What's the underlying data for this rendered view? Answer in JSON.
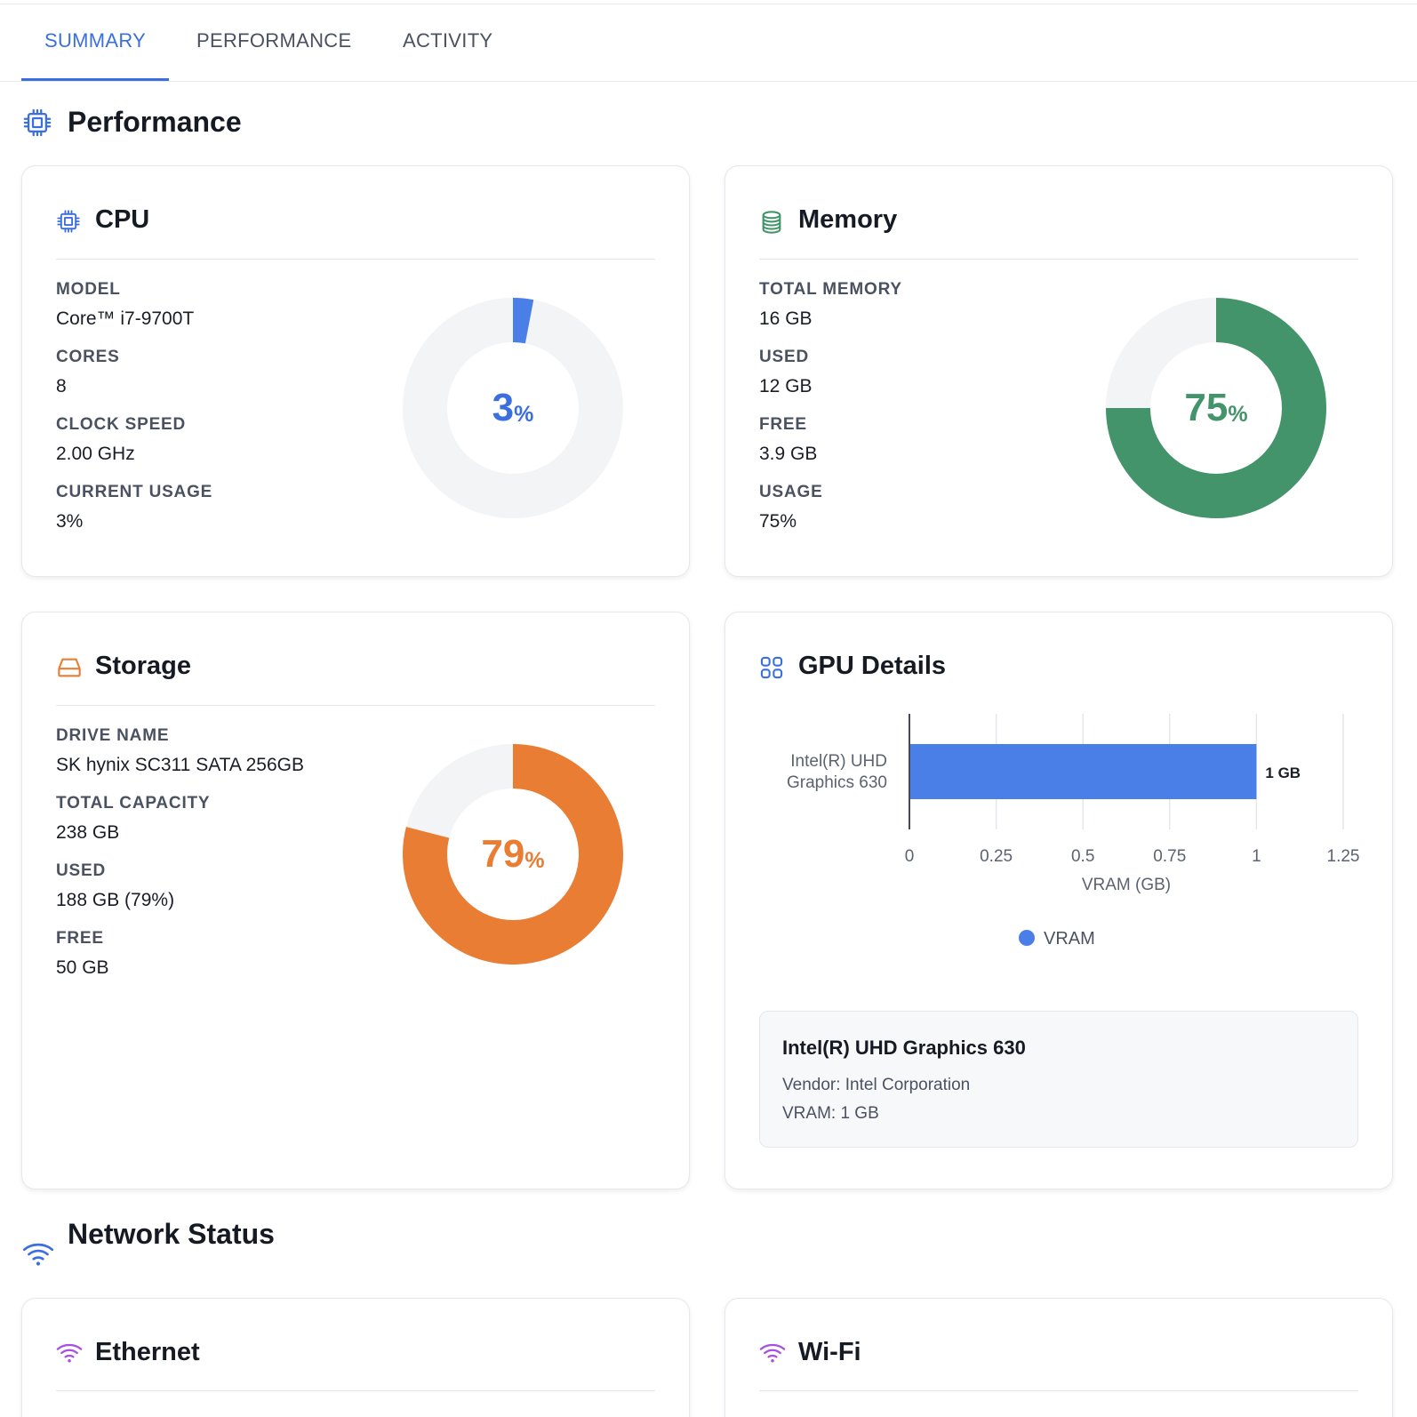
{
  "tabs": [
    {
      "label": "SUMMARY",
      "active": true
    },
    {
      "label": "PERFORMANCE",
      "active": false
    },
    {
      "label": "ACTIVITY",
      "active": false
    }
  ],
  "sections": {
    "performance": "Performance",
    "network": "Network Status"
  },
  "colors": {
    "accent": "#3b6fe0",
    "cpu": "#4a7fe8",
    "memory": "#43946a",
    "storage": "#e97d34",
    "network": "#a84fe0",
    "track": "#f3f4f6"
  },
  "cpu": {
    "title": "CPU",
    "icon": "cpu-chip-icon",
    "fields": [
      {
        "label": "MODEL",
        "value": "Core™ i7-9700T"
      },
      {
        "label": "CORES",
        "value": "8"
      },
      {
        "label": "CLOCK SPEED",
        "value": "2.00 GHz"
      },
      {
        "label": "CURRENT USAGE",
        "value": "3%"
      }
    ],
    "donut": {
      "value": 3,
      "num": "3",
      "pct": "%"
    }
  },
  "memory": {
    "title": "Memory",
    "icon": "database-icon",
    "fields": [
      {
        "label": "TOTAL MEMORY",
        "value": "16 GB"
      },
      {
        "label": "USED",
        "value": "12 GB"
      },
      {
        "label": "FREE",
        "value": "3.9 GB"
      },
      {
        "label": "USAGE",
        "value": "75%"
      }
    ],
    "donut": {
      "value": 75,
      "num": "75",
      "pct": "%"
    }
  },
  "storage": {
    "title": "Storage",
    "icon": "hard-drive-icon",
    "fields": [
      {
        "label": "DRIVE NAME",
        "value": "SK hynix SC311 SATA 256GB"
      },
      {
        "label": "TOTAL CAPACITY",
        "value": "238 GB"
      },
      {
        "label": "USED",
        "value": "188 GB (79%)"
      },
      {
        "label": "FREE",
        "value": "50 GB"
      }
    ],
    "donut": {
      "value": 79,
      "num": "79",
      "pct": "%"
    }
  },
  "gpu": {
    "title": "GPU Details",
    "icon": "grid-icon",
    "box": {
      "name": "Intel(R) UHD Graphics 630",
      "vendor": "Vendor: Intel Corporation",
      "vram": "VRAM: 1 GB"
    }
  },
  "chart_data": {
    "type": "bar",
    "orientation": "horizontal",
    "categories": [
      "Intel(R) UHD Graphics 630"
    ],
    "category_lines": [
      "Intel(R) UHD",
      "Graphics 630"
    ],
    "series": [
      {
        "name": "VRAM",
        "values": [
          1
        ],
        "color": "#4a7fe8"
      }
    ],
    "data_labels": [
      "1 GB"
    ],
    "xlabel": "VRAM (GB)",
    "xlim": [
      0,
      1.25
    ],
    "xticks": [
      0,
      0.25,
      0.5,
      0.75,
      1,
      1.25
    ],
    "xtick_labels": [
      "0",
      "0.25",
      "0.5",
      "0.75",
      "1",
      "1.25"
    ],
    "grid": true,
    "legend": "bottom"
  },
  "network": {
    "ethernet": {
      "title": "Ethernet",
      "icon": "wifi-icon"
    },
    "wifi": {
      "title": "Wi-Fi",
      "icon": "wifi-icon"
    }
  }
}
